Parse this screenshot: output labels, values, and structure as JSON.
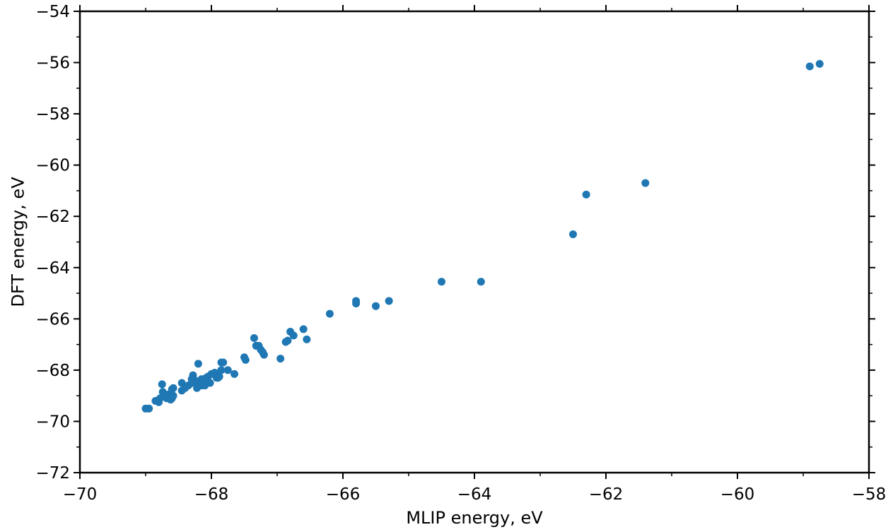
{
  "chart_data": {
    "type": "scatter",
    "xlabel": "MLIP energy, eV",
    "ylabel": "DFT energy, eV",
    "xlim": [
      -70,
      -58
    ],
    "ylim": [
      -72,
      -54
    ],
    "xticks": [
      -70,
      -68,
      -66,
      -64,
      -62,
      -60,
      -58
    ],
    "yticks": [
      -72,
      -70,
      -68,
      -66,
      -64,
      -62,
      -60,
      -58,
      -56,
      -54
    ],
    "xtick_labels": [
      "−70",
      "−68",
      "−66",
      "−64",
      "−62",
      "−60",
      "−58"
    ],
    "ytick_labels": [
      "−72",
      "−70",
      "−68",
      "−66",
      "−64",
      "−62",
      "−60",
      "−58",
      "−56",
      "−54"
    ],
    "grid": false,
    "marker_color": "#1f77b4",
    "points": [
      [
        -69.0,
        -69.5
      ],
      [
        -68.95,
        -69.5
      ],
      [
        -68.85,
        -69.2
      ],
      [
        -68.8,
        -69.25
      ],
      [
        -68.78,
        -69.1
      ],
      [
        -68.75,
        -68.55
      ],
      [
        -68.74,
        -68.85
      ],
      [
        -68.72,
        -69.0
      ],
      [
        -68.7,
        -68.95
      ],
      [
        -68.68,
        -69.1
      ],
      [
        -68.66,
        -69.05
      ],
      [
        -68.65,
        -68.95
      ],
      [
        -68.62,
        -69.15
      ],
      [
        -68.6,
        -69.1
      ],
      [
        -68.58,
        -69.0
      ],
      [
        -68.6,
        -68.75
      ],
      [
        -68.58,
        -68.7
      ],
      [
        -68.45,
        -68.5
      ],
      [
        -68.45,
        -68.8
      ],
      [
        -68.4,
        -68.7
      ],
      [
        -68.35,
        -68.6
      ],
      [
        -68.3,
        -68.35
      ],
      [
        -68.28,
        -68.2
      ],
      [
        -68.3,
        -68.5
      ],
      [
        -68.25,
        -68.4
      ],
      [
        -68.22,
        -68.7
      ],
      [
        -68.2,
        -68.5
      ],
      [
        -68.2,
        -67.75
      ],
      [
        -68.15,
        -68.35
      ],
      [
        -68.15,
        -68.6
      ],
      [
        -68.12,
        -68.45
      ],
      [
        -68.1,
        -68.6
      ],
      [
        -68.08,
        -68.3
      ],
      [
        -68.05,
        -68.25
      ],
      [
        -68.02,
        -68.5
      ],
      [
        -68.0,
        -68.15
      ],
      [
        -67.95,
        -68.1
      ],
      [
        -67.92,
        -68.3
      ],
      [
        -67.9,
        -68.3
      ],
      [
        -67.88,
        -68.25
      ],
      [
        -67.85,
        -68.0
      ],
      [
        -67.85,
        -67.7
      ],
      [
        -67.82,
        -67.7
      ],
      [
        -67.75,
        -68.0
      ],
      [
        -67.65,
        -68.15
      ],
      [
        -67.5,
        -67.5
      ],
      [
        -67.48,
        -67.6
      ],
      [
        -67.35,
        -66.75
      ],
      [
        -67.32,
        -67.05
      ],
      [
        -67.28,
        -67.05
      ],
      [
        -67.25,
        -67.2
      ],
      [
        -67.22,
        -67.3
      ],
      [
        -67.2,
        -67.4
      ],
      [
        -66.95,
        -67.55
      ],
      [
        -66.87,
        -66.9
      ],
      [
        -66.84,
        -66.85
      ],
      [
        -66.8,
        -66.5
      ],
      [
        -66.75,
        -66.65
      ],
      [
        -66.6,
        -66.4
      ],
      [
        -66.55,
        -66.8
      ],
      [
        -66.2,
        -65.8
      ],
      [
        -65.8,
        -65.3
      ],
      [
        -65.8,
        -65.4
      ],
      [
        -65.5,
        -65.5
      ],
      [
        -65.3,
        -65.3
      ],
      [
        -64.5,
        -64.55
      ],
      [
        -63.9,
        -64.55
      ],
      [
        -62.5,
        -62.7
      ],
      [
        -62.3,
        -61.15
      ],
      [
        -61.4,
        -60.7
      ],
      [
        -58.9,
        -56.15
      ],
      [
        -58.75,
        -56.05
      ]
    ]
  }
}
